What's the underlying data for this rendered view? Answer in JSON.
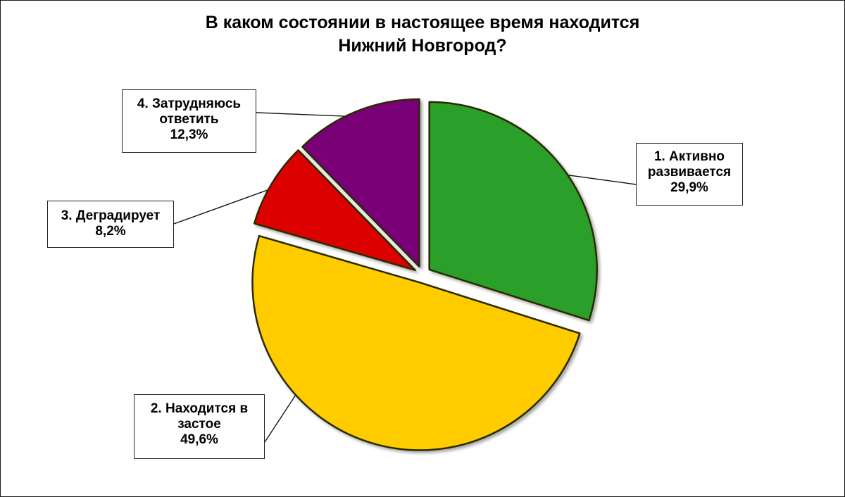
{
  "chart_data": {
    "type": "pie",
    "title_lines": [
      "В каком состоянии в настоящее время находится",
      "Нижний Новгород?"
    ],
    "slices": [
      {
        "label_lines": [
          "1. Активно",
          "развивается"
        ],
        "value_label": "29,9%",
        "value": 29.9,
        "color": "#2ca02c"
      },
      {
        "label_lines": [
          "2. Находится  в",
          "застое"
        ],
        "value_label": "49,6%",
        "value": 49.6,
        "color": "#ffcc00"
      },
      {
        "label_lines": [
          "3. Деградирует"
        ],
        "value_label": "8,2%",
        "value": 8.2,
        "color": "#dd0000"
      },
      {
        "label_lines": [
          "4. Затрудняюсь",
          "ответить"
        ],
        "value_label": "12,3%",
        "value": 12.3,
        "color": "#7a0077"
      }
    ],
    "exploded": true,
    "start_angle": "12 o'clock, clockwise",
    "legend": "none (callout labels)"
  }
}
